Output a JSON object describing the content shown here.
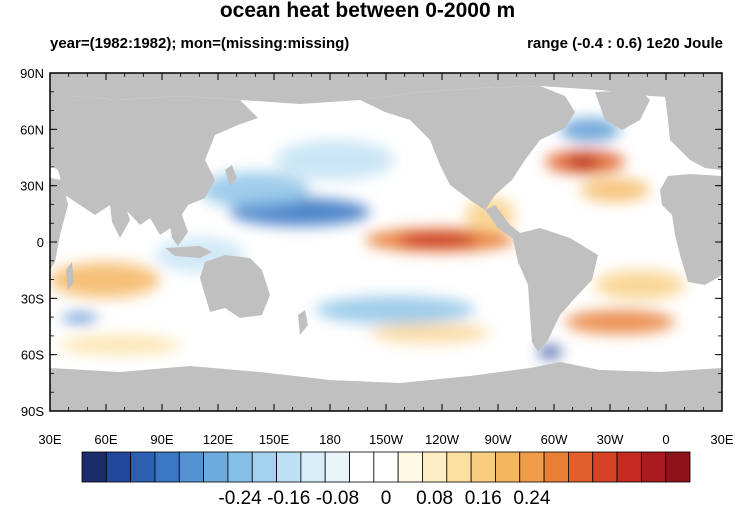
{
  "title": "ocean heat between 0-2000 m",
  "subtitle_left": "year=(1982:1982); mon=(missing:missing)",
  "subtitle_right": "range (-0.4 : 0.6) 1e20 Joule",
  "lat_labels": [
    "90N",
    "60N",
    "30N",
    "0",
    "30S",
    "60S",
    "90S"
  ],
  "lon_labels": [
    "30E",
    "60E",
    "90E",
    "120E",
    "150E",
    "180",
    "150W",
    "120W",
    "90W",
    "60W",
    "30W",
    "0",
    "30E"
  ],
  "colorbar": {
    "labels": [
      "-0.24",
      "-0.16",
      "-0.08",
      "0",
      "0.08",
      "0.16",
      "0.24"
    ],
    "colors": [
      "#1a2c6b",
      "#21479a",
      "#2b5fb1",
      "#3a78c4",
      "#5294d1",
      "#6cabdc",
      "#87c0e6",
      "#a2d2ee",
      "#bde0f4",
      "#d6ecf8",
      "#eaf5fb",
      "#ffffff",
      "#ffffff",
      "#fff8e3",
      "#fdeec3",
      "#fbe0a1",
      "#f8cd7f",
      "#f5b660",
      "#f09c48",
      "#e97e36",
      "#e05f2a",
      "#d54225",
      "#c42a22",
      "#aa1b1e",
      "#8e1219"
    ]
  },
  "colors": {
    "land": "#c0c0c0",
    "ocean_neutral": "#ffffff"
  }
}
